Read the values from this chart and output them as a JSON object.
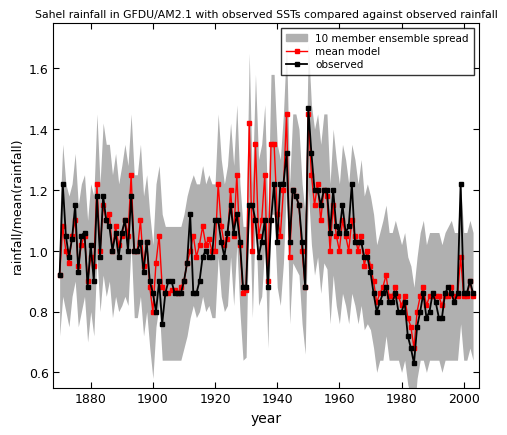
{
  "title": "Sahel rainfall in GFDU/AM2.1 with observed SSTs compared against observed rainfall",
  "xlabel": "year",
  "ylabel": "rainfall/mean(rainfall)",
  "xlim": [
    1868,
    2005
  ],
  "ylim": [
    0.55,
    1.75
  ],
  "yticks": [
    0.6,
    0.8,
    1.0,
    1.2,
    1.4,
    1.6
  ],
  "xticks": [
    1880,
    1900,
    1920,
    1940,
    1960,
    1980,
    2000
  ],
  "legend_labels": [
    "10 member ensemble spread",
    "mean model",
    "observed"
  ],
  "bg_color": "#ffffff",
  "ensemble_color": "#b0b0b0",
  "model_color": "#ff0000",
  "observed_color": "#000000",
  "years": [
    1870,
    1871,
    1872,
    1873,
    1874,
    1875,
    1876,
    1877,
    1878,
    1879,
    1880,
    1881,
    1882,
    1883,
    1884,
    1885,
    1886,
    1887,
    1888,
    1889,
    1890,
    1891,
    1892,
    1893,
    1894,
    1895,
    1896,
    1897,
    1898,
    1899,
    1900,
    1901,
    1902,
    1903,
    1904,
    1905,
    1906,
    1907,
    1908,
    1909,
    1910,
    1911,
    1912,
    1913,
    1914,
    1915,
    1916,
    1917,
    1918,
    1919,
    1920,
    1921,
    1922,
    1923,
    1924,
    1925,
    1926,
    1927,
    1928,
    1929,
    1930,
    1931,
    1932,
    1933,
    1934,
    1935,
    1936,
    1937,
    1938,
    1939,
    1940,
    1941,
    1942,
    1943,
    1944,
    1945,
    1946,
    1947,
    1948,
    1949,
    1950,
    1951,
    1952,
    1953,
    1954,
    1955,
    1956,
    1957,
    1958,
    1959,
    1960,
    1961,
    1962,
    1963,
    1964,
    1965,
    1966,
    1967,
    1968,
    1969,
    1970,
    1971,
    1972,
    1973,
    1974,
    1975,
    1976,
    1977,
    1978,
    1979,
    1980,
    1981,
    1982,
    1983,
    1984,
    1985,
    1986,
    1987,
    1988,
    1989,
    1990,
    1991,
    1992,
    1993,
    1994,
    1995,
    1996,
    1997,
    1998,
    1999,
    2000,
    2001,
    2002,
    2003
  ],
  "mean_model": [
    0.92,
    1.08,
    1.0,
    0.96,
    1.05,
    1.1,
    0.95,
    1.02,
    1.05,
    0.9,
    0.98,
    0.95,
    1.22,
    1.0,
    1.15,
    1.1,
    1.12,
    1.0,
    1.08,
    1.02,
    1.05,
    1.1,
    1.05,
    1.25,
    1.0,
    1.0,
    1.1,
    0.95,
    1.03,
    0.88,
    0.8,
    0.96,
    1.05,
    0.88,
    0.86,
    0.86,
    0.87,
    0.87,
    0.86,
    0.88,
    0.9,
    0.96,
    1.0,
    1.05,
    0.98,
    1.02,
    1.08,
    1.02,
    1.04,
    1.0,
    1.0,
    1.22,
    1.08,
    1.02,
    1.04,
    1.2,
    1.05,
    1.25,
    1.02,
    0.86,
    0.87,
    1.42,
    1.0,
    1.35,
    1.05,
    1.1,
    1.25,
    0.9,
    1.35,
    1.35,
    1.12,
    1.05,
    1.2,
    1.45,
    0.98,
    1.2,
    1.18,
    1.15,
    1.0,
    0.88,
    1.45,
    1.25,
    1.15,
    1.22,
    1.1,
    1.2,
    1.18,
    1.0,
    1.15,
    1.05,
    1.0,
    1.1,
    1.05,
    1.0,
    1.1,
    1.05,
    1.0,
    1.05,
    0.95,
    1.0,
    0.95,
    0.9,
    0.83,
    0.86,
    0.88,
    0.92,
    0.85,
    0.85,
    0.88,
    0.85,
    0.82,
    0.85,
    0.78,
    0.75,
    0.68,
    0.8,
    0.85,
    0.88,
    0.82,
    0.85,
    0.85,
    0.85,
    0.85,
    0.82,
    0.85,
    0.85,
    0.88,
    0.85,
    0.85,
    0.98,
    0.85,
    0.85,
    0.9,
    0.85
  ],
  "observed": [
    0.92,
    1.22,
    1.05,
    0.98,
    1.04,
    1.15,
    0.93,
    1.05,
    1.06,
    0.88,
    1.02,
    0.9,
    1.18,
    0.98,
    1.18,
    1.1,
    1.08,
    1.0,
    1.06,
    0.98,
    1.06,
    1.1,
    1.0,
    1.18,
    1.0,
    1.0,
    1.03,
    0.93,
    1.03,
    0.9,
    0.86,
    0.8,
    0.9,
    0.76,
    0.86,
    0.9,
    0.9,
    0.86,
    0.86,
    0.86,
    0.9,
    0.96,
    1.12,
    0.86,
    0.86,
    0.9,
    0.98,
    1.0,
    0.98,
    0.98,
    1.1,
    1.1,
    1.03,
    0.98,
    1.06,
    1.15,
    1.06,
    1.12,
    1.03,
    0.88,
    0.88,
    1.15,
    1.15,
    1.1,
    0.98,
    1.03,
    1.1,
    0.88,
    1.1,
    1.22,
    1.03,
    1.22,
    1.22,
    1.32,
    1.03,
    1.2,
    1.18,
    1.15,
    1.03,
    0.88,
    1.47,
    1.32,
    1.2,
    1.2,
    1.15,
    1.2,
    1.2,
    1.06,
    1.2,
    1.08,
    1.06,
    1.15,
    1.06,
    1.08,
    1.22,
    1.03,
    1.03,
    1.03,
    0.98,
    0.98,
    0.93,
    0.86,
    0.8,
    0.83,
    0.86,
    0.88,
    0.83,
    0.83,
    0.86,
    0.8,
    0.8,
    0.83,
    0.72,
    0.68,
    0.63,
    0.75,
    0.8,
    0.86,
    0.78,
    0.8,
    0.86,
    0.83,
    0.78,
    0.78,
    0.86,
    0.88,
    0.86,
    0.83,
    0.86,
    1.22,
    0.86,
    0.86,
    0.9,
    0.86
  ],
  "ensemble_upper": [
    1.1,
    1.35,
    1.22,
    1.18,
    1.22,
    1.32,
    1.15,
    1.22,
    1.25,
    1.1,
    1.22,
    1.18,
    1.45,
    1.22,
    1.42,
    1.35,
    1.35,
    1.25,
    1.32,
    1.22,
    1.28,
    1.35,
    1.28,
    1.45,
    1.25,
    1.25,
    1.35,
    1.18,
    1.25,
    1.12,
    1.02,
    1.22,
    1.28,
    1.12,
    1.08,
    1.08,
    1.08,
    1.08,
    1.08,
    1.08,
    1.12,
    1.18,
    1.22,
    1.25,
    1.22,
    1.22,
    1.28,
    1.22,
    1.25,
    1.22,
    1.22,
    1.45,
    1.3,
    1.22,
    1.28,
    1.42,
    1.28,
    1.48,
    1.22,
    1.08,
    1.08,
    1.65,
    1.22,
    1.58,
    1.3,
    1.35,
    1.48,
    1.12,
    1.58,
    1.58,
    1.35,
    1.3,
    1.45,
    1.68,
    1.22,
    1.45,
    1.45,
    1.4,
    1.22,
    1.12,
    1.68,
    1.48,
    1.4,
    1.45,
    1.35,
    1.45,
    1.45,
    1.22,
    1.4,
    1.3,
    1.22,
    1.35,
    1.3,
    1.22,
    1.35,
    1.3,
    1.22,
    1.3,
    1.18,
    1.22,
    1.18,
    1.12,
    1.02,
    1.06,
    1.1,
    1.15,
    1.06,
    1.06,
    1.1,
    1.06,
    1.02,
    1.06,
    0.98,
    0.95,
    0.88,
    0.98,
    1.06,
    1.1,
    1.02,
    1.06,
    1.06,
    1.06,
    1.06,
    1.02,
    1.06,
    1.08,
    1.1,
    1.06,
    1.06,
    1.22,
    1.06,
    1.06,
    1.1,
    1.06
  ],
  "ensemble_lower": [
    0.72,
    0.85,
    0.8,
    0.75,
    0.85,
    0.9,
    0.75,
    0.8,
    0.85,
    0.7,
    0.8,
    0.72,
    0.98,
    0.8,
    0.92,
    0.85,
    0.9,
    0.78,
    0.85,
    0.8,
    0.82,
    0.85,
    0.82,
    1.02,
    0.78,
    0.78,
    0.85,
    0.72,
    0.8,
    0.68,
    0.58,
    0.75,
    0.82,
    0.64,
    0.64,
    0.64,
    0.64,
    0.64,
    0.64,
    0.64,
    0.68,
    0.72,
    0.78,
    0.82,
    0.78,
    0.8,
    0.85,
    0.8,
    0.82,
    0.78,
    0.78,
    0.98,
    0.85,
    0.8,
    0.82,
    0.98,
    0.82,
    1.02,
    0.8,
    0.64,
    0.65,
    1.18,
    0.78,
    1.12,
    0.82,
    0.85,
    1.02,
    0.68,
    1.12,
    1.12,
    0.88,
    0.82,
    0.96,
    1.22,
    0.76,
    0.96,
    0.94,
    0.92,
    0.76,
    0.66,
    1.2,
    1.02,
    0.92,
    0.98,
    0.86,
    0.96,
    0.94,
    0.76,
    0.92,
    0.82,
    0.76,
    0.86,
    0.82,
    0.76,
    0.86,
    0.82,
    0.76,
    0.82,
    0.74,
    0.76,
    0.74,
    0.68,
    0.6,
    0.64,
    0.64,
    0.72,
    0.64,
    0.64,
    0.64,
    0.64,
    0.6,
    0.64,
    0.56,
    0.52,
    0.46,
    0.58,
    0.64,
    0.64,
    0.6,
    0.64,
    0.64,
    0.64,
    0.64,
    0.6,
    0.64,
    0.64,
    0.64,
    0.64,
    0.64,
    0.76,
    0.64,
    0.64,
    0.68,
    0.64
  ]
}
